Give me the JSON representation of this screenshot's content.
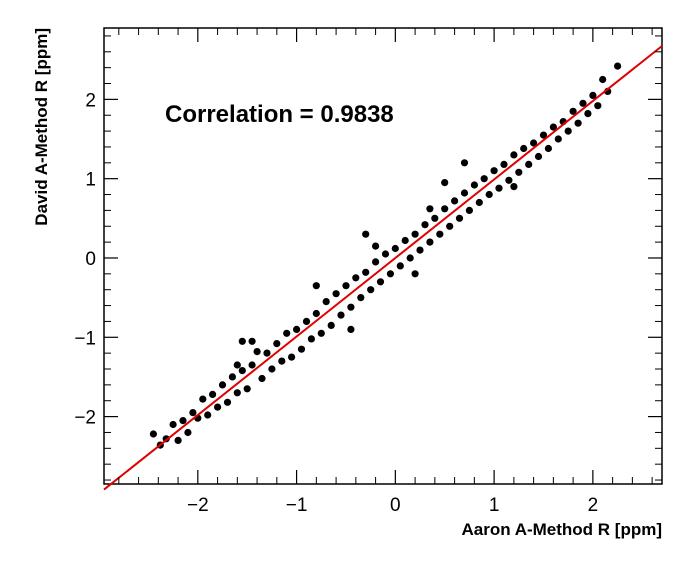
{
  "chart_data": {
    "type": "scatter",
    "xlabel": "Aaron A-Method R [ppm]",
    "ylabel": "David A-Method R [ppm]",
    "annotation": "Correlation = 0.9838",
    "correlation": 0.9838,
    "xlim": [
      -2.95,
      2.7
    ],
    "ylim": [
      -2.85,
      2.9
    ],
    "x_ticks": [
      -2,
      -1,
      0,
      1,
      2
    ],
    "x_tick_labels": [
      "−2",
      "−1",
      "0",
      "1",
      "2"
    ],
    "y_ticks": [
      -2,
      -1,
      0,
      1,
      2
    ],
    "y_tick_labels": [
      "−2",
      "−1",
      "0",
      "1",
      "2"
    ],
    "grid": false,
    "point_color": "#000000",
    "fit_line": {
      "slope": 0.99,
      "intercept": 0.0,
      "color": "#e00000"
    },
    "series": [
      {
        "points": [
          [
            -2.45,
            -2.22
          ],
          [
            -2.38,
            -2.36
          ],
          [
            -2.32,
            -2.28
          ],
          [
            -2.25,
            -2.1
          ],
          [
            -2.2,
            -2.3
          ],
          [
            -2.15,
            -2.05
          ],
          [
            -2.1,
            -2.2
          ],
          [
            -2.05,
            -1.95
          ],
          [
            -2.0,
            -2.02
          ],
          [
            -1.95,
            -1.78
          ],
          [
            -1.9,
            -1.98
          ],
          [
            -1.85,
            -1.72
          ],
          [
            -1.8,
            -1.88
          ],
          [
            -1.75,
            -1.6
          ],
          [
            -1.7,
            -1.82
          ],
          [
            -1.65,
            -1.5
          ],
          [
            -1.6,
            -1.7
          ],
          [
            -1.55,
            -1.42
          ],
          [
            -1.5,
            -1.65
          ],
          [
            -1.45,
            -1.35
          ],
          [
            -1.6,
            -1.35
          ],
          [
            -1.55,
            -1.05
          ],
          [
            -1.4,
            -1.18
          ],
          [
            -1.35,
            -1.52
          ],
          [
            -1.3,
            -1.2
          ],
          [
            -1.25,
            -1.4
          ],
          [
            -1.2,
            -1.08
          ],
          [
            -1.15,
            -1.3
          ],
          [
            -1.1,
            -0.95
          ],
          [
            -1.05,
            -1.25
          ],
          [
            -1.0,
            -0.9
          ],
          [
            -0.95,
            -1.15
          ],
          [
            -0.9,
            -0.8
          ],
          [
            -0.85,
            -1.02
          ],
          [
            -0.8,
            -0.7
          ],
          [
            -0.75,
            -0.95
          ],
          [
            -0.7,
            -0.55
          ],
          [
            -0.65,
            -0.85
          ],
          [
            -0.6,
            -0.45
          ],
          [
            -0.55,
            -0.72
          ],
          [
            -0.5,
            -0.35
          ],
          [
            -0.45,
            -0.62
          ],
          [
            -0.4,
            -0.25
          ],
          [
            -0.35,
            -0.5
          ],
          [
            -0.3,
            -0.18
          ],
          [
            -0.25,
            -0.4
          ],
          [
            -0.2,
            -0.05
          ],
          [
            -0.15,
            -0.3
          ],
          [
            -0.1,
            0.05
          ],
          [
            -0.05,
            -0.2
          ],
          [
            0.0,
            0.12
          ],
          [
            0.05,
            -0.1
          ],
          [
            0.1,
            0.22
          ],
          [
            0.15,
            0.0
          ],
          [
            0.2,
            0.3
          ],
          [
            0.25,
            0.1
          ],
          [
            0.3,
            0.42
          ],
          [
            0.35,
            0.2
          ],
          [
            0.4,
            0.5
          ],
          [
            0.45,
            0.3
          ],
          [
            0.5,
            0.62
          ],
          [
            0.55,
            0.4
          ],
          [
            0.6,
            0.72
          ],
          [
            0.65,
            0.5
          ],
          [
            0.7,
            0.82
          ],
          [
            0.75,
            0.6
          ],
          [
            0.8,
            0.92
          ],
          [
            0.85,
            0.7
          ],
          [
            0.9,
            1.0
          ],
          [
            0.95,
            0.8
          ],
          [
            1.0,
            1.1
          ],
          [
            1.05,
            0.88
          ],
          [
            1.1,
            1.18
          ],
          [
            1.15,
            0.98
          ],
          [
            1.2,
            1.3
          ],
          [
            1.25,
            1.08
          ],
          [
            1.3,
            1.38
          ],
          [
            1.35,
            1.18
          ],
          [
            1.4,
            1.45
          ],
          [
            1.45,
            1.28
          ],
          [
            1.5,
            1.55
          ],
          [
            1.55,
            1.38
          ],
          [
            1.6,
            1.65
          ],
          [
            1.65,
            1.5
          ],
          [
            1.7,
            1.72
          ],
          [
            1.75,
            1.6
          ],
          [
            1.8,
            1.85
          ],
          [
            1.85,
            1.7
          ],
          [
            1.9,
            1.95
          ],
          [
            1.95,
            1.82
          ],
          [
            2.0,
            2.05
          ],
          [
            2.05,
            1.92
          ],
          [
            2.1,
            2.25
          ],
          [
            2.15,
            2.1
          ],
          [
            2.25,
            2.42
          ],
          [
            0.7,
            1.2
          ],
          [
            -0.3,
            0.3
          ],
          [
            0.2,
            -0.2
          ],
          [
            -0.8,
            -0.35
          ],
          [
            -0.45,
            -0.9
          ],
          [
            1.2,
            0.9
          ],
          [
            0.5,
            0.95
          ],
          [
            -1.45,
            -1.05
          ],
          [
            -0.2,
            0.15
          ],
          [
            0.35,
            0.62
          ]
        ]
      }
    ]
  }
}
